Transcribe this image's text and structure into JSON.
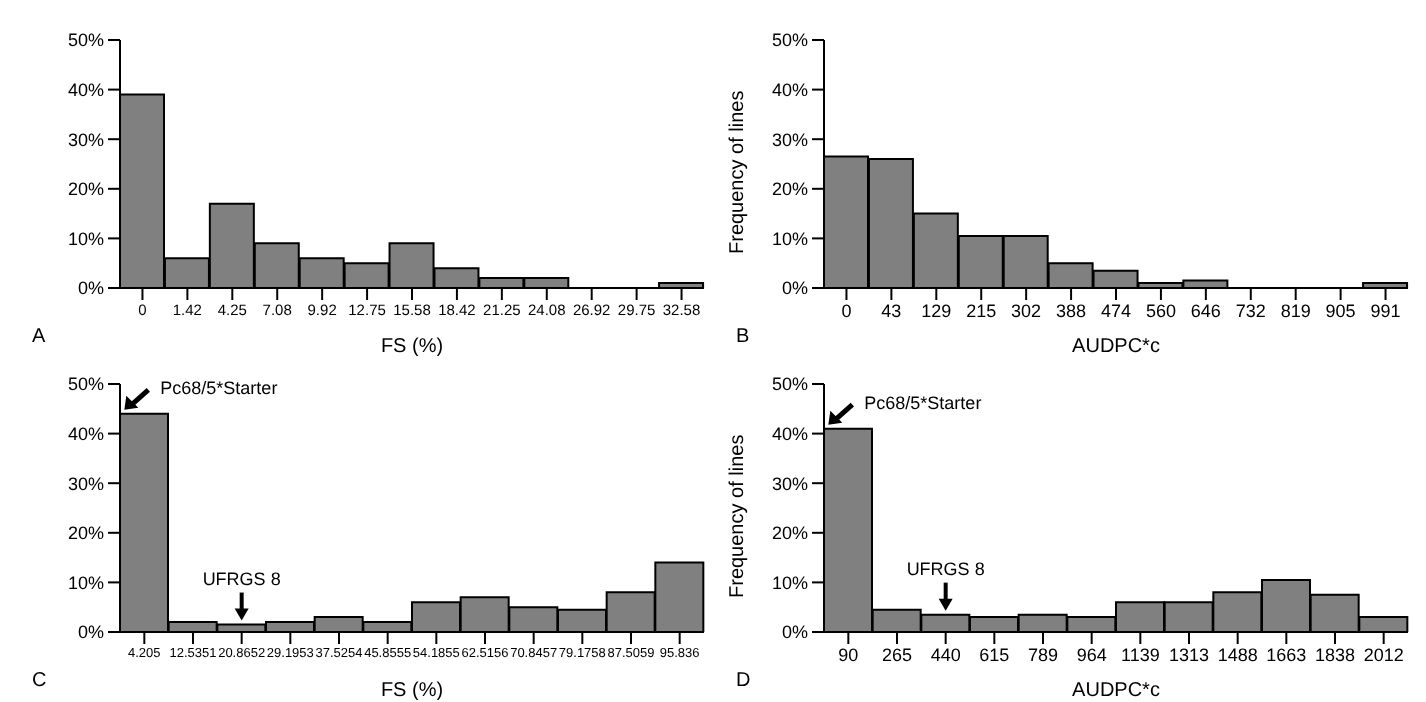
{
  "chart_data": [
    {
      "type": "bar",
      "xlabel": "FS (%)",
      "annotations": [
        "A"
      ],
      "categories": [
        "0",
        "1.42",
        "4.25",
        "7.08",
        "9.92",
        "12.75",
        "15.58",
        "18.42",
        "21.25",
        "24.08",
        "26.92",
        "29.75",
        "32.58"
      ],
      "values": [
        39,
        6,
        17,
        9,
        6,
        5,
        9,
        4,
        2,
        2,
        0,
        0,
        1
      ],
      "color": "#808080",
      "ylim": [
        0,
        50
      ],
      "yticks": [
        {
          "value": 0,
          "label": "0%"
        },
        {
          "value": 10,
          "label": "10%"
        },
        {
          "value": 20,
          "label": "20%"
        },
        {
          "value": 30,
          "label": "30%"
        },
        {
          "value": 40,
          "label": "40%"
        },
        {
          "value": 50,
          "label": "50%"
        }
      ],
      "grid": false,
      "legend": false
    },
    {
      "type": "bar",
      "xlabel": "AUDPC*c",
      "ylabel": "Frequency of lines",
      "annotations": [
        "B"
      ],
      "categories": [
        "0",
        "43",
        "129",
        "215",
        "302",
        "388",
        "474",
        "560",
        "646",
        "732",
        "819",
        "905",
        "991"
      ],
      "values": [
        26.5,
        26,
        15,
        10.5,
        10.5,
        5,
        3.5,
        1,
        1.5,
        0,
        0,
        0,
        1
      ],
      "color": "#808080",
      "ylim": [
        0,
        50
      ],
      "yticks": [
        {
          "value": 0,
          "label": "0%"
        },
        {
          "value": 10,
          "label": "10%"
        },
        {
          "value": 20,
          "label": "20%"
        },
        {
          "value": 30,
          "label": "30%"
        },
        {
          "value": 40,
          "label": "40%"
        },
        {
          "value": 50,
          "label": "50%"
        }
      ],
      "grid": false,
      "legend": false
    },
    {
      "type": "bar",
      "xlabel": "FS (%)",
      "annotations": [
        "C",
        {
          "text": "Pc68/5*Starter",
          "x": "4.205",
          "y": 44
        },
        {
          "text": "UFRGS 8",
          "x": "20.8652",
          "y": 1.5
        }
      ],
      "categories": [
        "4.205",
        "12.5351",
        "20.8652",
        "29.1953",
        "37.5254",
        "45.8555",
        "54.1855",
        "62.5156",
        "70.8457",
        "79.1758",
        "87.5059",
        "95.836"
      ],
      "values": [
        44,
        2,
        1.5,
        2,
        3,
        2,
        6,
        7,
        5,
        4.5,
        8,
        14
      ],
      "color": "#808080",
      "ylim": [
        0,
        50
      ],
      "yticks": [
        {
          "value": 0,
          "label": "0%"
        },
        {
          "value": 10,
          "label": "10%"
        },
        {
          "value": 20,
          "label": "20%"
        },
        {
          "value": 30,
          "label": "30%"
        },
        {
          "value": 40,
          "label": "40%"
        },
        {
          "value": 50,
          "label": "50%"
        }
      ],
      "grid": false,
      "legend": false
    },
    {
      "type": "bar",
      "xlabel": "AUDPC*c",
      "ylabel": "Frequency of lines",
      "annotations": [
        "D",
        {
          "text": "Pc68/5*Starter",
          "x": "90",
          "y": 41
        },
        {
          "text": "UFRGS 8",
          "x": "440",
          "y": 3.5
        }
      ],
      "categories": [
        "90",
        "265",
        "440",
        "615",
        "789",
        "964",
        "1139",
        "1313",
        "1488",
        "1663",
        "1838",
        "2012"
      ],
      "values": [
        41,
        4.5,
        3.5,
        3,
        3.5,
        3,
        6,
        6,
        8,
        10.5,
        7.5,
        3
      ],
      "color": "#808080",
      "ylim": [
        0,
        50
      ],
      "yticks": [
        {
          "value": 0,
          "label": "0%"
        },
        {
          "value": 10,
          "label": "10%"
        },
        {
          "value": 20,
          "label": "20%"
        },
        {
          "value": 30,
          "label": "30%"
        },
        {
          "value": 40,
          "label": "40%"
        },
        {
          "value": 50,
          "label": "50%"
        }
      ],
      "grid": false,
      "legend": false
    }
  ]
}
